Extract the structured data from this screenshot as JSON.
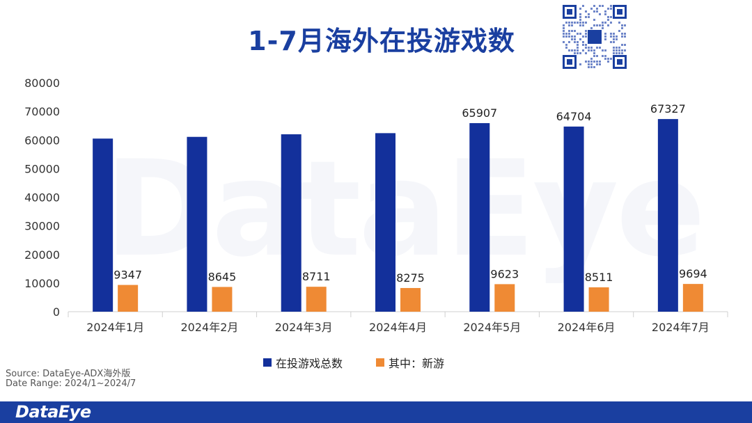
{
  "title": "1-7月海外在投游戏数",
  "watermark": "DataEye",
  "footer": {
    "logo_text": "DataEye",
    "source_text": "Source:  DataEye-ADX海外版",
    "date_range_text": "Date Range:  2024/1~2024/7"
  },
  "colors": {
    "brand": "#1a3fa0",
    "total": "#13309b",
    "new": "#ef8a34"
  },
  "legend": {
    "total_label": "在投游戏总数",
    "new_label": "其中：新游"
  },
  "chart_data": {
    "type": "bar",
    "title": "1-7月海外在投游戏数",
    "categories": [
      "2024年1月",
      "2024年2月",
      "2024年3月",
      "2024年4月",
      "2024年5月",
      "2024年6月",
      "2024年7月"
    ],
    "series": [
      {
        "name": "在投游戏总数",
        "values": [
          60500,
          61100,
          62000,
          62400,
          65907,
          64704,
          67327
        ],
        "labels": [
          "",
          "",
          "",
          "",
          "65907",
          "64704",
          "67327"
        ]
      },
      {
        "name": "其中：新游",
        "values": [
          9347,
          8645,
          8711,
          8275,
          9623,
          8511,
          9694
        ],
        "labels": [
          "9347",
          "8645",
          "8711",
          "8275",
          "9623",
          "8511",
          "9694"
        ]
      }
    ],
    "ylim": [
      0,
      80000
    ],
    "yticks": [
      "0",
      "10000",
      "20000",
      "30000",
      "40000",
      "50000",
      "60000",
      "70000",
      "80000"
    ],
    "xlabel": "",
    "ylabel": "",
    "legend_position": "bottom",
    "grid": false
  }
}
